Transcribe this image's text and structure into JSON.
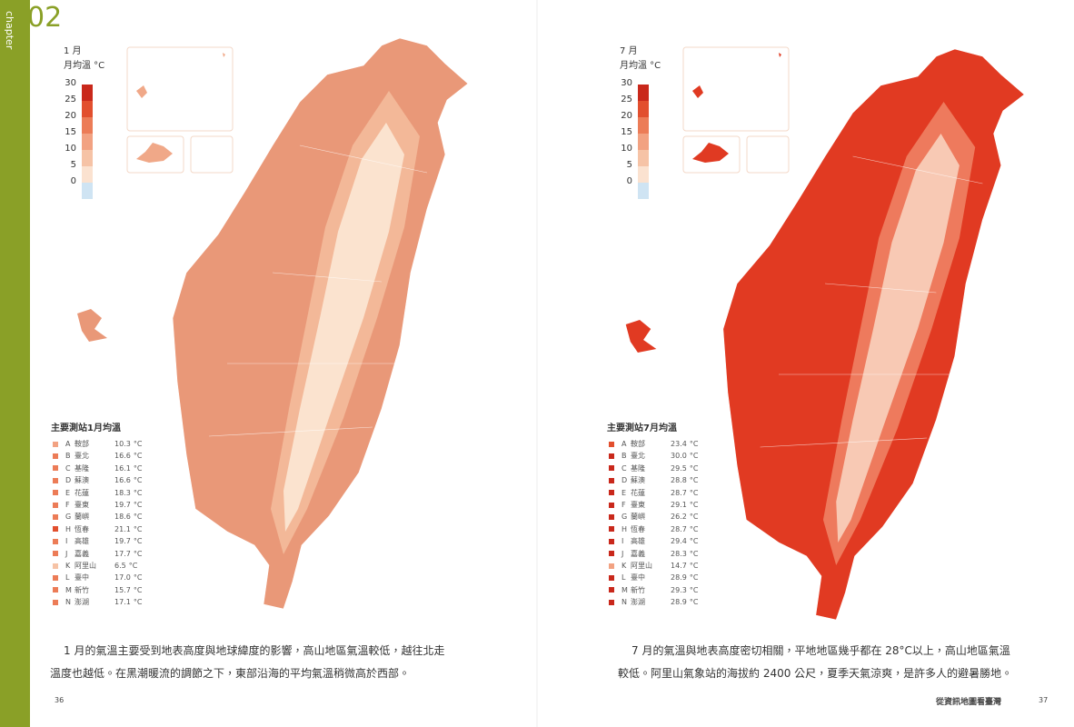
{
  "chapter": {
    "number": "02",
    "label": "chapter"
  },
  "unit": "°C",
  "legend_ticks": [
    30,
    25,
    20,
    15,
    10,
    5,
    0
  ],
  "legend_colors": [
    "#c9281b",
    "#e24f2e",
    "#ec7c57",
    "#f2a282",
    "#f6c3a6",
    "#fbe2d0",
    "#cfe4f3"
  ],
  "pages": [
    {
      "month": "1 月",
      "legend_title": "月均溫 °C",
      "list_title": "主要測站1月均溫",
      "paragraph": [
        "1 月的氣溫主要受到地表高度與地球緯度的影響，高山地區氣溫較低，越往北走",
        "溫度也越低。在黑潮暖流的調節之下，東部沿海的平均氣溫稍微高於西部。"
      ],
      "page_number": "36",
      "stations": [
        {
          "letter": "A",
          "name": "鞍部",
          "temp": "10.3"
        },
        {
          "letter": "B",
          "name": "臺北",
          "temp": "16.6"
        },
        {
          "letter": "C",
          "name": "基隆",
          "temp": "16.1"
        },
        {
          "letter": "D",
          "name": "蘇澳",
          "temp": "16.6"
        },
        {
          "letter": "E",
          "name": "花蓮",
          "temp": "18.3"
        },
        {
          "letter": "F",
          "name": "臺東",
          "temp": "19.7"
        },
        {
          "letter": "G",
          "name": "蘭嶼",
          "temp": "18.6"
        },
        {
          "letter": "H",
          "name": "恆春",
          "temp": "21.1"
        },
        {
          "letter": "I",
          "name": "高雄",
          "temp": "19.7"
        },
        {
          "letter": "J",
          "name": "嘉義",
          "temp": "17.7"
        },
        {
          "letter": "K",
          "name": "阿里山",
          "temp": "6.5"
        },
        {
          "letter": "L",
          "name": "臺中",
          "temp": "17.0"
        },
        {
          "letter": "M",
          "name": "新竹",
          "temp": "15.7"
        },
        {
          "letter": "N",
          "name": "澎湖",
          "temp": "17.1"
        }
      ]
    },
    {
      "month": "7 月",
      "legend_title": "月均溫 °C",
      "list_title": "主要測站7月均溫",
      "paragraph": [
        "7 月的氣溫與地表高度密切相關，平地地區幾乎都在 28°C以上，高山地區氣溫",
        "較低。阿里山氣象站的海拔約 2400 公尺，夏季天氣涼爽，是許多人的避暑勝地。"
      ],
      "page_number": "37",
      "footer_title": "從資訊地圖看臺灣",
      "stations": [
        {
          "letter": "A",
          "name": "鞍部",
          "temp": "23.4"
        },
        {
          "letter": "B",
          "name": "臺北",
          "temp": "30.0"
        },
        {
          "letter": "C",
          "name": "基隆",
          "temp": "29.5"
        },
        {
          "letter": "D",
          "name": "蘇澳",
          "temp": "28.8"
        },
        {
          "letter": "E",
          "name": "花蓮",
          "temp": "28.7"
        },
        {
          "letter": "F",
          "name": "臺東",
          "temp": "29.1"
        },
        {
          "letter": "G",
          "name": "蘭嶼",
          "temp": "26.2"
        },
        {
          "letter": "H",
          "name": "恆春",
          "temp": "28.7"
        },
        {
          "letter": "I",
          "name": "高雄",
          "temp": "29.4"
        },
        {
          "letter": "J",
          "name": "嘉義",
          "temp": "28.3"
        },
        {
          "letter": "K",
          "name": "阿里山",
          "temp": "14.7"
        },
        {
          "letter": "L",
          "name": "臺中",
          "temp": "28.9"
        },
        {
          "letter": "M",
          "name": "新竹",
          "temp": "29.3"
        },
        {
          "letter": "N",
          "name": "澎湖",
          "temp": "28.9"
        }
      ]
    }
  ]
}
